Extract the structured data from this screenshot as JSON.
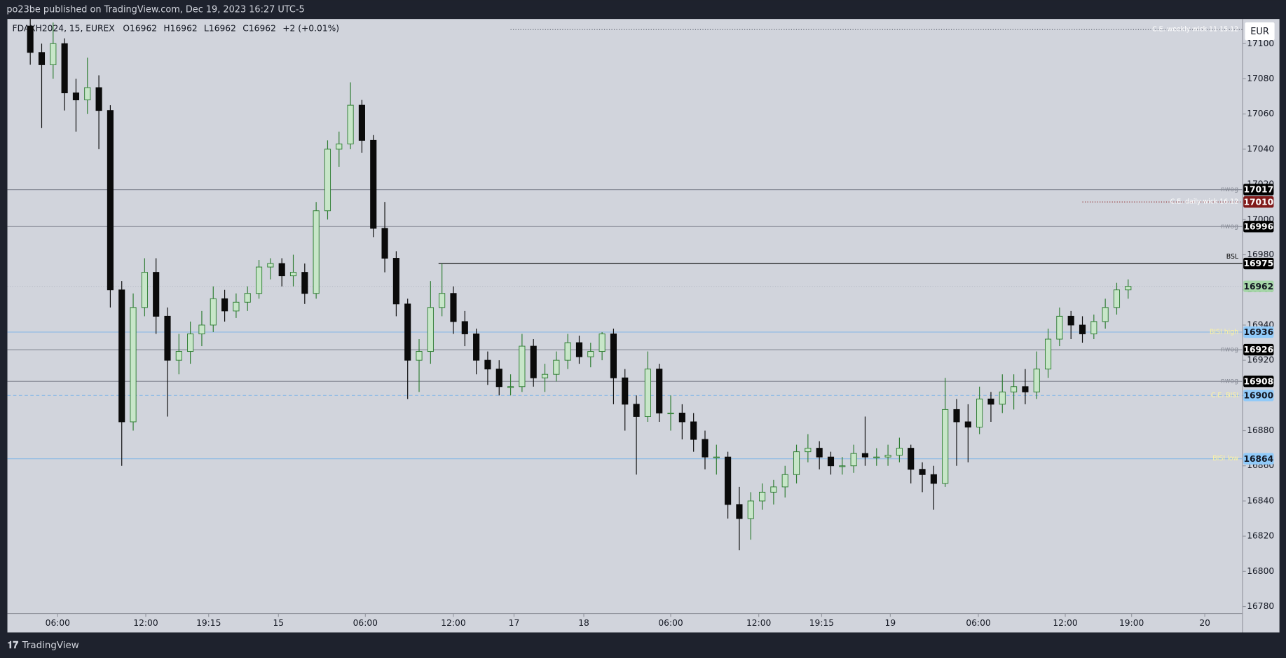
{
  "header": {
    "title": "po23be published on TradingView.com, Dec 19, 2023 16:27 UTC-5"
  },
  "footer": {
    "brand": "TradingView"
  },
  "chart_data": {
    "type": "candlestick",
    "legend": {
      "symbol": "FDAXH2024, 15, EUREX",
      "items": [
        {
          "key": "O",
          "value": 16962
        },
        {
          "key": "H",
          "value": 16962
        },
        {
          "key": "L",
          "value": 16962
        },
        {
          "key": "C",
          "value": 16962
        }
      ],
      "change": "+2 (+0.01%)"
    },
    "currency": "EUR",
    "up_color": "#c8e6c9",
    "up_border": "#2e7d32",
    "down_color": "#0b0b0b",
    "xlim": [
      0,
      108
    ],
    "ylim": [
      16776,
      17114
    ],
    "yticks": [
      16780,
      16800,
      16820,
      16840,
      16860,
      16880,
      16900,
      16920,
      16940,
      16960,
      16980,
      17000,
      17020,
      17040,
      17060,
      17080,
      17100
    ],
    "xticks": [
      {
        "value": 4.4,
        "label": "06:00"
      },
      {
        "value": 12.1,
        "label": "12:00"
      },
      {
        "value": 17.6,
        "label": "19:15"
      },
      {
        "value": 23.7,
        "label": "15"
      },
      {
        "value": 31.3,
        "label": "06:00"
      },
      {
        "value": 39,
        "label": "12:00"
      },
      {
        "value": 44.3,
        "label": "17"
      },
      {
        "value": 50.4,
        "label": "18"
      },
      {
        "value": 58,
        "label": "06:00"
      },
      {
        "value": 65.7,
        "label": "12:00"
      },
      {
        "value": 71.2,
        "label": "19:15"
      },
      {
        "value": 77.2,
        "label": "19"
      },
      {
        "value": 84.9,
        "label": "06:00"
      },
      {
        "value": 92.5,
        "label": "12:00"
      },
      {
        "value": 98.3,
        "label": "19:00"
      },
      {
        "value": 104.7,
        "label": "20"
      }
    ],
    "x": [
      2,
      3,
      4,
      5,
      6,
      7,
      8,
      9,
      10,
      11,
      12,
      13,
      14,
      15,
      16,
      17,
      18,
      19,
      20,
      21,
      22,
      23,
      24,
      25,
      26,
      27,
      28,
      29,
      30,
      31,
      32,
      33,
      34,
      35,
      36,
      37,
      38,
      39,
      40,
      41,
      42,
      43,
      44,
      45,
      46,
      47,
      48,
      49,
      50,
      51,
      52,
      53,
      54,
      55,
      56,
      57,
      58,
      59,
      60,
      61,
      62,
      63,
      64,
      65,
      66,
      67,
      68,
      69,
      70,
      71,
      72,
      73,
      74,
      75,
      76,
      77,
      78,
      79,
      80,
      81,
      82,
      83,
      84,
      85,
      86,
      87,
      88,
      89,
      90,
      91,
      92,
      93,
      94,
      95,
      96,
      97,
      98
    ],
    "candles": [
      [
        17110,
        17114,
        17088,
        17095
      ],
      [
        17095,
        17100,
        17052,
        17088
      ],
      [
        17088,
        17112,
        17080,
        17100
      ],
      [
        17100,
        17103,
        17062,
        17072
      ],
      [
        17072,
        17080,
        17050,
        17068
      ],
      [
        17068,
        17092,
        17060,
        17075
      ],
      [
        17075,
        17082,
        17040,
        17062
      ],
      [
        17062,
        17065,
        16950,
        16960
      ],
      [
        16960,
        16965,
        16860,
        16885
      ],
      [
        16885,
        16958,
        16880,
        16950
      ],
      [
        16950,
        16978,
        16945,
        16970
      ],
      [
        16970,
        16978,
        16935,
        16945
      ],
      [
        16945,
        16950,
        16888,
        16920
      ],
      [
        16920,
        16935,
        16912,
        16925
      ],
      [
        16925,
        16942,
        16918,
        16935
      ],
      [
        16935,
        16948,
        16928,
        16940
      ],
      [
        16940,
        16962,
        16936,
        16955
      ],
      [
        16955,
        16960,
        16942,
        16948
      ],
      [
        16948,
        16958,
        16944,
        16953
      ],
      [
        16953,
        16962,
        16948,
        16958
      ],
      [
        16958,
        16977,
        16955,
        16973
      ],
      [
        16973,
        16978,
        16966,
        16975
      ],
      [
        16975,
        16978,
        16962,
        16968
      ],
      [
        16968,
        16980,
        16962,
        16970
      ],
      [
        16970,
        16975,
        16952,
        16958
      ],
      [
        16958,
        17010,
        16955,
        17005
      ],
      [
        17005,
        17045,
        17000,
        17040
      ],
      [
        17040,
        17050,
        17030,
        17043
      ],
      [
        17043,
        17078,
        17040,
        17065
      ],
      [
        17065,
        17068,
        17038,
        17045
      ],
      [
        17045,
        17048,
        16990,
        16995
      ],
      [
        16995,
        17010,
        16970,
        16978
      ],
      [
        16978,
        16982,
        16945,
        16952
      ],
      [
        16952,
        16955,
        16898,
        16920
      ],
      [
        16920,
        16932,
        16902,
        16925
      ],
      [
        16925,
        16965,
        16918,
        16950
      ],
      [
        16950,
        16975,
        16945,
        16958
      ],
      [
        16958,
        16962,
        16935,
        16942
      ],
      [
        16942,
        16948,
        16928,
        16935
      ],
      [
        16935,
        16938,
        16912,
        16920
      ],
      [
        16920,
        16925,
        16906,
        16915
      ],
      [
        16915,
        16920,
        16900,
        16905
      ],
      [
        16905,
        16912,
        16900,
        16905
      ],
      [
        16905,
        16935,
        16902,
        16928
      ],
      [
        16928,
        16932,
        16905,
        16910
      ],
      [
        16910,
        16918,
        16902,
        16912
      ],
      [
        16912,
        16925,
        16908,
        16920
      ],
      [
        16920,
        16935,
        16915,
        16930
      ],
      [
        16930,
        16934,
        16918,
        16922
      ],
      [
        16922,
        16930,
        16916,
        16925
      ],
      [
        16925,
        16936,
        16920,
        16935
      ],
      [
        16935,
        16938,
        16895,
        16910
      ],
      [
        16910,
        16915,
        16880,
        16895
      ],
      [
        16895,
        16900,
        16855,
        16888
      ],
      [
        16888,
        16925,
        16885,
        16915
      ],
      [
        16915,
        16918,
        16885,
        16890
      ],
      [
        16890,
        16900,
        16880,
        16890
      ],
      [
        16890,
        16895,
        16875,
        16885
      ],
      [
        16885,
        16890,
        16868,
        16875
      ],
      [
        16875,
        16880,
        16858,
        16865
      ],
      [
        16865,
        16872,
        16855,
        16865
      ],
      [
        16865,
        16868,
        16830,
        16838
      ],
      [
        16838,
        16848,
        16812,
        16830
      ],
      [
        16830,
        16845,
        16818,
        16840
      ],
      [
        16840,
        16850,
        16835,
        16845
      ],
      [
        16845,
        16852,
        16838,
        16848
      ],
      [
        16848,
        16860,
        16842,
        16855
      ],
      [
        16855,
        16872,
        16850,
        16868
      ],
      [
        16868,
        16878,
        16862,
        16870
      ],
      [
        16870,
        16874,
        16858,
        16865
      ],
      [
        16865,
        16868,
        16855,
        16860
      ],
      [
        16860,
        16865,
        16855,
        16860
      ],
      [
        16860,
        16872,
        16856,
        16867
      ],
      [
        16867,
        16888,
        16860,
        16865
      ],
      [
        16865,
        16870,
        16860,
        16865
      ],
      [
        16865,
        16872,
        16860,
        16866
      ],
      [
        16866,
        16876,
        16862,
        16870
      ],
      [
        16870,
        16872,
        16850,
        16858
      ],
      [
        16858,
        16862,
        16845,
        16855
      ],
      [
        16855,
        16860,
        16835,
        16850
      ],
      [
        16850,
        16910,
        16848,
        16892
      ],
      [
        16892,
        16898,
        16860,
        16885
      ],
      [
        16885,
        16895,
        16862,
        16882
      ],
      [
        16882,
        16905,
        16878,
        16898
      ],
      [
        16898,
        16902,
        16885,
        16895
      ],
      [
        16895,
        16912,
        16890,
        16902
      ],
      [
        16902,
        16912,
        16892,
        16905
      ],
      [
        16905,
        16915,
        16895,
        16902
      ],
      [
        16902,
        16925,
        16898,
        16915
      ],
      [
        16915,
        16938,
        16910,
        16932
      ],
      [
        16932,
        16950,
        16928,
        16945
      ],
      [
        16945,
        16948,
        16932,
        16940
      ],
      [
        16940,
        16945,
        16930,
        16935
      ],
      [
        16935,
        16946,
        16932,
        16942
      ],
      [
        16942,
        16955,
        16938,
        16950
      ],
      [
        16950,
        16964,
        16946,
        16960
      ],
      [
        16960,
        16966,
        16955,
        16962
      ]
    ],
    "levels": [
      {
        "name": "C.E. weekly wick 11-15.12",
        "value": 17108,
        "from": 44,
        "color": "#555a66",
        "style": "dotted",
        "text_color": "#ffffff"
      },
      {
        "name": "nwog",
        "value": 17017,
        "from": 0,
        "color": "#8a8e99",
        "style": "solid",
        "text_color": "#8a8e99",
        "box": "#000000",
        "box_text": "#ffffff"
      },
      {
        "name": "C.E. daily wick 16.12",
        "value": 17010,
        "from": 94,
        "color": "#8b1a1a",
        "style": "dotted",
        "text_color": "#ffffff",
        "box": "#801919",
        "box_text": "#ffffff"
      },
      {
        "name": "nwog",
        "value": 16996,
        "from": 0,
        "color": "#8a8e99",
        "style": "solid",
        "text_color": "#8a8e99",
        "box": "#000000",
        "box_text": "#ffffff"
      },
      {
        "name": "BSL",
        "value": 16975,
        "from": 37.7,
        "color": "#000000",
        "style": "solid",
        "text_color": "#000000",
        "box": "#000000",
        "box_text": "#ffffff"
      },
      {
        "value": 16962,
        "from": 0,
        "color": "#b8bcc6",
        "style": "dotted",
        "box": "#a5d6a7",
        "box_text": "#131722"
      },
      {
        "name": "BISI high",
        "value": 16936,
        "from": 0,
        "color": "#8ab8e6",
        "style": "solid",
        "text_color": "#fff59d",
        "box": "#90caf9",
        "box_text": "#131722"
      },
      {
        "name": "nwog",
        "value": 16926,
        "from": 0,
        "color": "#8a8e99",
        "style": "solid",
        "text_color": "#8a8e99",
        "box": "#000000",
        "box_text": "#ffffff"
      },
      {
        "name": "nwog",
        "value": 16908,
        "from": 0,
        "color": "#8a8e99",
        "style": "solid",
        "text_color": "#8a8e99",
        "box": "#000000",
        "box_text": "#ffffff"
      },
      {
        "name": "C.E. BISI",
        "value": 16900,
        "from": 0,
        "color": "#8ab8e6",
        "style": "dashed",
        "text_color": "#fff59d",
        "box": "#90caf9",
        "box_text": "#131722"
      },
      {
        "name": "BISI low",
        "value": 16864,
        "from": 0,
        "color": "#8ab8e6",
        "style": "solid",
        "text_color": "#fff59d",
        "box": "#90caf9",
        "box_text": "#131722"
      }
    ]
  }
}
